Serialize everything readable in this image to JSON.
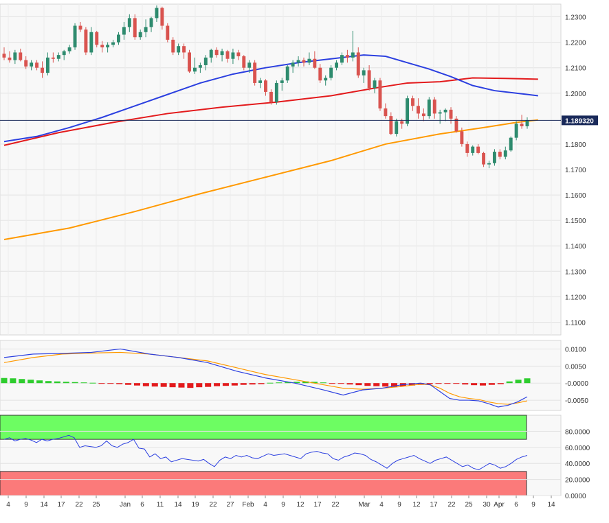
{
  "chart_data": [
    {
      "type": "candlestick",
      "panel": "price",
      "title": "",
      "ylim": [
        1.105,
        1.235
      ],
      "y_ticks": [
        "1.2300",
        "1.2200",
        "1.2100",
        "1.2000",
        "1.1800",
        "1.1700",
        "1.1600",
        "1.1500",
        "1.1400",
        "1.1300",
        "1.1200",
        "1.1100"
      ],
      "last_price_label": "1.189320",
      "last_price": 1.18932,
      "grid": true,
      "colors": {
        "up": "#2e8b6e",
        "down": "#d9534f",
        "sma_fast": "#2b3fe0",
        "sma_mid": "#e31a1c",
        "sma_slow": "#ff9900",
        "price_line": "#1a2a5a",
        "last_label_bg": "#1a2a5a"
      },
      "candles": [
        [
          1.2155,
          1.218,
          1.213,
          1.214
        ],
        [
          1.214,
          1.2165,
          1.212,
          1.213
        ],
        [
          1.213,
          1.217,
          1.2115,
          1.216
        ],
        [
          1.216,
          1.2175,
          1.2125,
          1.213
        ],
        [
          1.213,
          1.2145,
          1.2095,
          1.2105
        ],
        [
          1.2105,
          1.213,
          1.209,
          1.212
        ],
        [
          1.212,
          1.213,
          1.209,
          1.21
        ],
        [
          1.21,
          1.2125,
          1.206,
          1.208
        ],
        [
          1.208,
          1.216,
          1.207,
          1.214
        ],
        [
          1.214,
          1.216,
          1.212,
          1.2135
        ],
        [
          1.2135,
          1.216,
          1.2125,
          1.215
        ],
        [
          1.215,
          1.217,
          1.213,
          1.2165
        ],
        [
          1.2165,
          1.219,
          1.2155,
          1.218
        ],
        [
          1.218,
          1.2275,
          1.217,
          1.2265
        ],
        [
          1.2265,
          1.228,
          1.224,
          1.225
        ],
        [
          1.225,
          1.226,
          1.215,
          1.216
        ],
        [
          1.216,
          1.226,
          1.215,
          1.224
        ],
        [
          1.224,
          1.2245,
          1.218,
          1.219
        ],
        [
          1.219,
          1.2205,
          1.216,
          1.218
        ],
        [
          1.218,
          1.22,
          1.216,
          1.219
        ],
        [
          1.219,
          1.221,
          1.218,
          1.22
        ],
        [
          1.22,
          1.224,
          1.219,
          1.223
        ],
        [
          1.223,
          1.228,
          1.221,
          1.226
        ],
        [
          1.226,
          1.231,
          1.224,
          1.2295
        ],
        [
          1.2295,
          1.231,
          1.221,
          1.222
        ],
        [
          1.222,
          1.225,
          1.221,
          1.224
        ],
        [
          1.224,
          1.229,
          1.222,
          1.226
        ],
        [
          1.226,
          1.23,
          1.224,
          1.2295
        ],
        [
          1.2295,
          1.2345,
          1.228,
          1.2335
        ],
        [
          1.2335,
          1.234,
          1.225,
          1.2265
        ],
        [
          1.2265,
          1.2275,
          1.22,
          1.221
        ],
        [
          1.221,
          1.222,
          1.215,
          1.216
        ],
        [
          1.216,
          1.2195,
          1.215,
          1.2185
        ],
        [
          1.2185,
          1.2195,
          1.2135,
          1.216
        ],
        [
          1.216,
          1.217,
          1.208,
          1.2085
        ],
        [
          1.2085,
          1.214,
          1.2075,
          1.21
        ],
        [
          1.21,
          1.212,
          1.208,
          1.211
        ],
        [
          1.211,
          1.215,
          1.209,
          1.214
        ],
        [
          1.214,
          1.2175,
          1.212,
          1.217
        ],
        [
          1.217,
          1.218,
          1.214,
          1.215
        ],
        [
          1.215,
          1.2175,
          1.2125,
          1.2165
        ],
        [
          1.2165,
          1.217,
          1.212,
          1.2135
        ],
        [
          1.2135,
          1.2175,
          1.2115,
          1.216
        ],
        [
          1.216,
          1.217,
          1.213,
          1.2145
        ],
        [
          1.2145,
          1.215,
          1.209,
          1.21
        ],
        [
          1.21,
          1.213,
          1.208,
          1.212
        ],
        [
          1.212,
          1.213,
          1.203,
          1.204
        ],
        [
          1.204,
          1.206,
          1.202,
          1.205
        ],
        [
          1.205,
          1.2055,
          1.199,
          1.2005
        ],
        [
          1.2005,
          1.2015,
          1.1955,
          1.1965
        ],
        [
          1.1965,
          1.205,
          1.1955,
          1.204
        ],
        [
          1.204,
          1.206,
          1.201,
          1.205
        ],
        [
          1.205,
          1.211,
          1.204,
          1.2105
        ],
        [
          1.2105,
          1.213,
          1.208,
          1.212
        ],
        [
          1.212,
          1.2145,
          1.2105,
          1.213
        ],
        [
          1.213,
          1.214,
          1.2105,
          1.212
        ],
        [
          1.212,
          1.216,
          1.211,
          1.2135
        ],
        [
          1.2135,
          1.2165,
          1.2095,
          1.21
        ],
        [
          1.21,
          1.2115,
          1.204,
          1.205
        ],
        [
          1.205,
          1.207,
          1.203,
          1.206
        ],
        [
          1.206,
          1.211,
          1.205,
          1.21
        ],
        [
          1.21,
          1.213,
          1.209,
          1.212
        ],
        [
          1.212,
          1.216,
          1.211,
          1.215
        ],
        [
          1.215,
          1.217,
          1.212,
          1.214
        ],
        [
          1.214,
          1.2245,
          1.2125,
          1.216
        ],
        [
          1.216,
          1.218,
          1.206,
          1.207
        ],
        [
          1.207,
          1.21,
          1.204,
          1.209
        ],
        [
          1.209,
          1.211,
          1.201,
          1.202
        ],
        [
          1.202,
          1.206,
          1.2,
          1.205
        ],
        [
          1.205,
          1.206,
          1.193,
          1.194
        ],
        [
          1.194,
          1.196,
          1.19,
          1.191
        ],
        [
          1.191,
          1.1925,
          1.1835,
          1.184
        ],
        [
          1.184,
          1.19,
          1.183,
          1.189
        ],
        [
          1.189,
          1.19,
          1.186,
          1.188
        ],
        [
          1.188,
          1.199,
          1.187,
          1.198
        ],
        [
          1.198,
          1.199,
          1.193,
          1.195
        ],
        [
          1.195,
          1.198,
          1.19,
          1.192
        ],
        [
          1.192,
          1.194,
          1.189,
          1.191
        ],
        [
          1.191,
          1.1985,
          1.19,
          1.1975
        ],
        [
          1.1975,
          1.1985,
          1.19,
          1.192
        ],
        [
          1.192,
          1.1935,
          1.188,
          1.1925
        ],
        [
          1.1925,
          1.194,
          1.189,
          1.1935
        ],
        [
          1.1935,
          1.1945,
          1.188,
          1.19
        ],
        [
          1.19,
          1.191,
          1.1845,
          1.185
        ],
        [
          1.185,
          1.1865,
          1.179,
          1.18
        ],
        [
          1.18,
          1.181,
          1.175,
          1.1765
        ],
        [
          1.1765,
          1.1795,
          1.1755,
          1.179
        ],
        [
          1.179,
          1.18,
          1.176,
          1.1765
        ],
        [
          1.1765,
          1.177,
          1.171,
          1.172
        ],
        [
          1.172,
          1.1735,
          1.1705,
          1.1725
        ],
        [
          1.1725,
          1.178,
          1.1715,
          1.177
        ],
        [
          1.177,
          1.178,
          1.174,
          1.175
        ],
        [
          1.175,
          1.179,
          1.174,
          1.1775
        ],
        [
          1.1775,
          1.183,
          1.177,
          1.1825
        ],
        [
          1.1825,
          1.189,
          1.1815,
          1.188
        ],
        [
          1.188,
          1.1915,
          1.186,
          1.187
        ],
        [
          1.187,
          1.1905,
          1.186,
          1.1893
        ]
      ],
      "moving_averages": {
        "sma_fast": [
          [
            0,
            1.181
          ],
          [
            6,
            1.183
          ],
          [
            12,
            1.1865
          ],
          [
            18,
            1.1905
          ],
          [
            24,
            1.195
          ],
          [
            30,
            1.1995
          ],
          [
            36,
            1.204
          ],
          [
            42,
            1.2075
          ],
          [
            48,
            1.21
          ],
          [
            54,
            1.212
          ],
          [
            60,
            1.2135
          ],
          [
            66,
            1.215
          ],
          [
            70,
            1.2145
          ],
          [
            74,
            1.212
          ],
          [
            78,
            1.2095
          ],
          [
            82,
            1.2065
          ],
          [
            86,
            1.203
          ],
          [
            90,
            1.201
          ],
          [
            94,
            1.2
          ],
          [
            98,
            1.199
          ]
        ],
        "sma_mid": [
          [
            0,
            1.1795
          ],
          [
            10,
            1.1845
          ],
          [
            20,
            1.1885
          ],
          [
            30,
            1.192
          ],
          [
            40,
            1.1945
          ],
          [
            50,
            1.1965
          ],
          [
            60,
            1.199
          ],
          [
            68,
            1.202
          ],
          [
            74,
            1.204
          ],
          [
            80,
            1.2045
          ],
          [
            86,
            1.206
          ],
          [
            92,
            1.2058
          ],
          [
            98,
            1.2055
          ]
        ],
        "sma_slow": [
          [
            0,
            1.1425
          ],
          [
            12,
            1.147
          ],
          [
            24,
            1.1535
          ],
          [
            36,
            1.1605
          ],
          [
            48,
            1.167
          ],
          [
            60,
            1.1735
          ],
          [
            70,
            1.18
          ],
          [
            80,
            1.184
          ],
          [
            88,
            1.1865
          ],
          [
            94,
            1.1885
          ],
          [
            98,
            1.1895
          ]
        ]
      }
    },
    {
      "type": "macd",
      "panel": "macd",
      "ylim": [
        -0.008,
        0.0125
      ],
      "y_ticks": [
        "0.0100",
        "0.0050",
        "-0.0000",
        "-0.0050"
      ],
      "macd_line": [
        [
          0,
          0.0075
        ],
        [
          6,
          0.0085
        ],
        [
          12,
          0.0087
        ],
        [
          18,
          0.009
        ],
        [
          24,
          0.01
        ],
        [
          30,
          0.0085
        ],
        [
          36,
          0.0075
        ],
        [
          42,
          0.006
        ],
        [
          48,
          0.0035
        ],
        [
          54,
          0.0015
        ],
        [
          60,
          0.0
        ],
        [
          66,
          -0.002
        ],
        [
          70,
          -0.0035
        ],
        [
          74,
          -0.002
        ],
        [
          78,
          -0.0015
        ],
        [
          82,
          -0.0005
        ],
        [
          86,
          0.0
        ],
        [
          88,
          -0.0005
        ],
        [
          90,
          -0.0025
        ],
        [
          92,
          -0.0045
        ],
        [
          94,
          -0.005
        ],
        [
          96,
          -0.005
        ],
        [
          98,
          -0.0052
        ],
        [
          100,
          -0.006
        ],
        [
          102,
          -0.007
        ],
        [
          104,
          -0.0065
        ],
        [
          106,
          -0.0055
        ],
        [
          108,
          -0.004
        ]
      ],
      "signal_line": [
        [
          0,
          0.006
        ],
        [
          6,
          0.0075
        ],
        [
          12,
          0.0085
        ],
        [
          18,
          0.0088
        ],
        [
          24,
          0.009
        ],
        [
          30,
          0.0085
        ],
        [
          36,
          0.0075
        ],
        [
          42,
          0.0065
        ],
        [
          48,
          0.0045
        ],
        [
          54,
          0.0025
        ],
        [
          60,
          0.001
        ],
        [
          66,
          -0.0005
        ],
        [
          70,
          -0.0015
        ],
        [
          74,
          -0.0018
        ],
        [
          78,
          -0.0015
        ],
        [
          82,
          -0.001
        ],
        [
          86,
          -0.0003
        ],
        [
          88,
          -0.0005
        ],
        [
          90,
          -0.0015
        ],
        [
          92,
          -0.003
        ],
        [
          94,
          -0.004
        ],
        [
          96,
          -0.0045
        ],
        [
          98,
          -0.0048
        ],
        [
          100,
          -0.0055
        ],
        [
          102,
          -0.006
        ],
        [
          104,
          -0.0062
        ],
        [
          106,
          -0.0058
        ],
        [
          108,
          -0.0052
        ]
      ],
      "histogram": [
        0.0015,
        0.0014,
        0.0012,
        0.001,
        0.0008,
        0.0006,
        0.0005,
        0.0004,
        0.0003,
        0.0002,
        0.0001,
        -0.0001,
        -0.0002,
        -0.0003,
        -0.0005,
        -0.0007,
        -0.0009,
        -0.001,
        -0.0011,
        -0.0012,
        -0.0013,
        -0.0014,
        -0.0012,
        -0.0011,
        -0.0009,
        -0.0008,
        -0.0007,
        -0.0005,
        -0.0004,
        -0.0003,
        0.0001,
        0.0002,
        0.0003,
        0.0004,
        0.0005,
        0.0004,
        0.0002,
        -0.0001,
        -0.0002,
        -0.0004,
        -0.0006,
        -0.0008,
        -0.0009,
        -0.001,
        -0.0011,
        -0.0009,
        -0.0007,
        -0.0005,
        -0.0003,
        -0.0002,
        -0.0001,
        -0.0001,
        -0.0004,
        -0.0006,
        -0.0007,
        -0.0005,
        -0.0003,
        0.0005,
        0.001,
        0.0014
      ],
      "colors": {
        "macd_line": "#2b3fe0",
        "signal_line": "#ff9900",
        "hist_pos": "#2ecc2e",
        "hist_neg": "#e31a1c"
      }
    },
    {
      "type": "rsi",
      "panel": "rsi",
      "ylim": [
        0,
        100
      ],
      "y_ticks": [
        "80.0000",
        "60.0000",
        "40.0000",
        "20.0000",
        "0.0000"
      ],
      "overbought_zone": [
        70,
        100
      ],
      "oversold_zone": [
        0,
        30
      ],
      "values": [
        70,
        72,
        68,
        70,
        71,
        69,
        66,
        70,
        68,
        70,
        71,
        73,
        75,
        72,
        60,
        62,
        61,
        60,
        62,
        68,
        62,
        60,
        64,
        66,
        70,
        59,
        58,
        48,
        52,
        46,
        48,
        42,
        44,
        46,
        45,
        44,
        43,
        45,
        40,
        36,
        44,
        48,
        46,
        50,
        48,
        50,
        47,
        46,
        49,
        52,
        50,
        51,
        52,
        50,
        48,
        46,
        52,
        54,
        55,
        53,
        52,
        46,
        44,
        48,
        50,
        53,
        52,
        50,
        45,
        42,
        38,
        34,
        40,
        44,
        46,
        48,
        50,
        46,
        43,
        40,
        44,
        46,
        48,
        44,
        40,
        36,
        38,
        34,
        32,
        36,
        40,
        38,
        34,
        36,
        40,
        45,
        48,
        50
      ],
      "colors": {
        "line": "#2b3fe0",
        "overbought": "#6dfd62",
        "oversold": "#fb7a7a"
      }
    }
  ],
  "x_axis": {
    "labels": [
      "4",
      "9",
      "14",
      "17",
      "22",
      "25",
      "Jan",
      "6",
      "11",
      "14",
      "19",
      "22",
      "27",
      "Feb",
      "4",
      "9",
      "12",
      "17",
      "22",
      "Mar",
      "4",
      "9",
      "12",
      "17",
      "22",
      "25",
      "30",
      "Apr",
      "6",
      "9",
      "14"
    ]
  }
}
